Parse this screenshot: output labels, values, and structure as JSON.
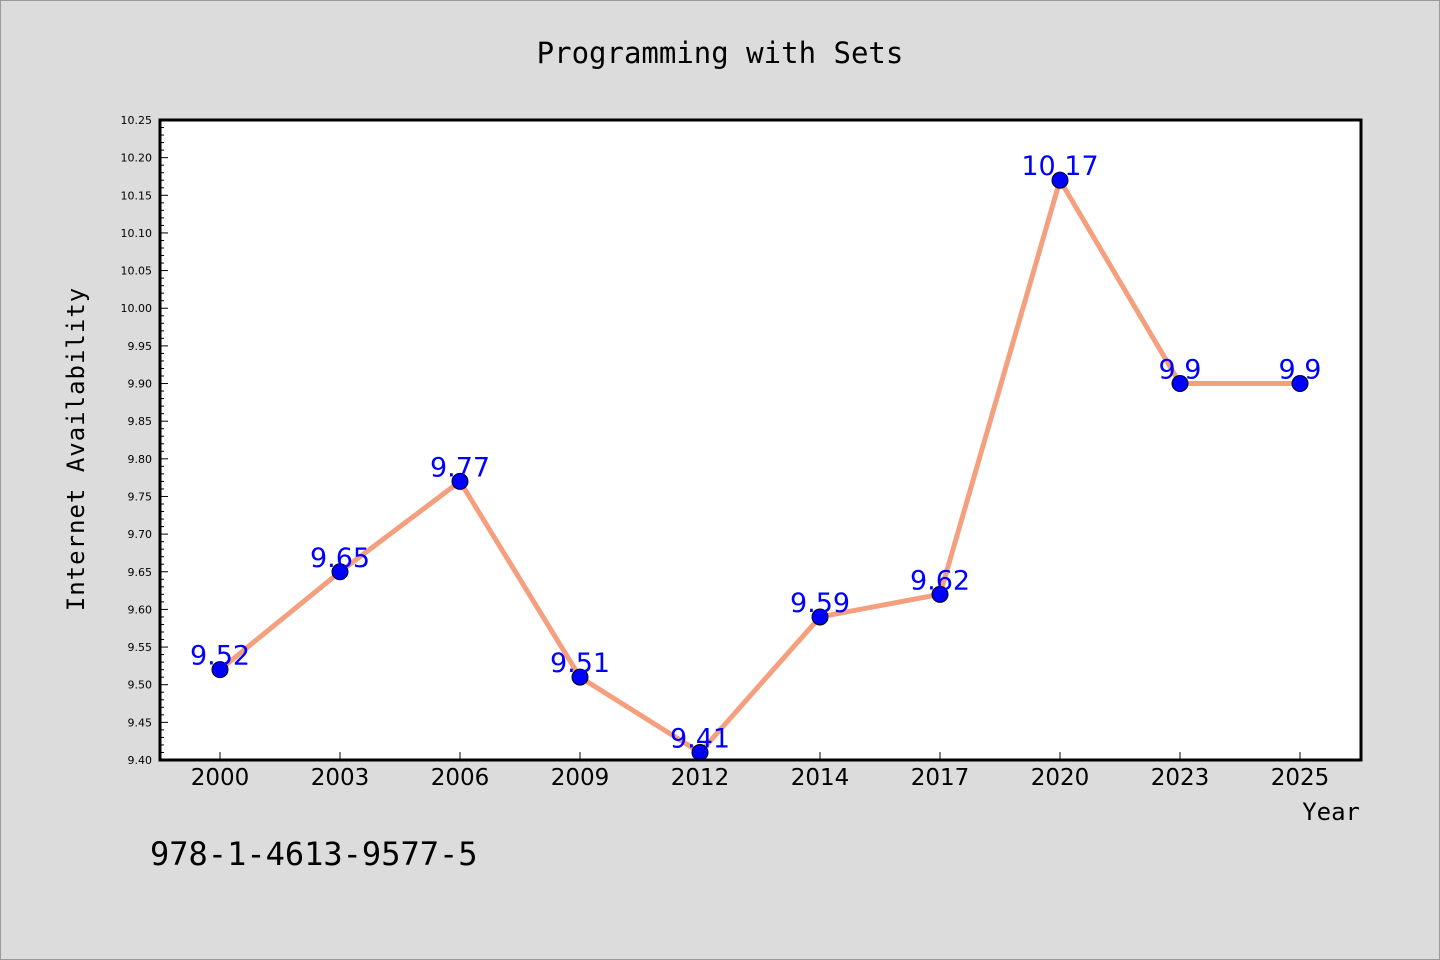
{
  "chart_data": {
    "type": "line",
    "title": "Programming with Sets",
    "xlabel": "Year",
    "ylabel": "Internet Availability",
    "categories": [
      "2000",
      "2003",
      "2006",
      "2009",
      "2012",
      "2014",
      "2017",
      "2020",
      "2023",
      "2025"
    ],
    "series": [
      {
        "values": [
          9.52,
          9.65,
          9.77,
          9.51,
          9.41,
          9.59,
          9.62,
          10.17,
          9.9,
          9.9
        ],
        "labels": [
          "9.52",
          "9.65",
          "9.77",
          "9.51",
          "9.41",
          "9.59",
          "9.62",
          "10.17",
          "9.9",
          "9.9"
        ],
        "line_color": "#f4a07f",
        "marker_color": "#0000ff"
      }
    ],
    "ylim": [
      9.4,
      10.25
    ],
    "yticks": [
      "9.40",
      "9.45",
      "9.50",
      "9.55",
      "9.60",
      "9.65",
      "9.70",
      "9.75",
      "9.80",
      "9.85",
      "9.90",
      "9.95",
      "10.00",
      "10.05",
      "10.10",
      "10.15",
      "10.20",
      "10.25"
    ],
    "grid": false,
    "legend": "none"
  },
  "annotation": {
    "isbn": "978-1-4613-9577-5"
  },
  "colors": {
    "background": "#dcdcdc",
    "plot_area": "#ffffff",
    "data_label": "#0000ff"
  }
}
